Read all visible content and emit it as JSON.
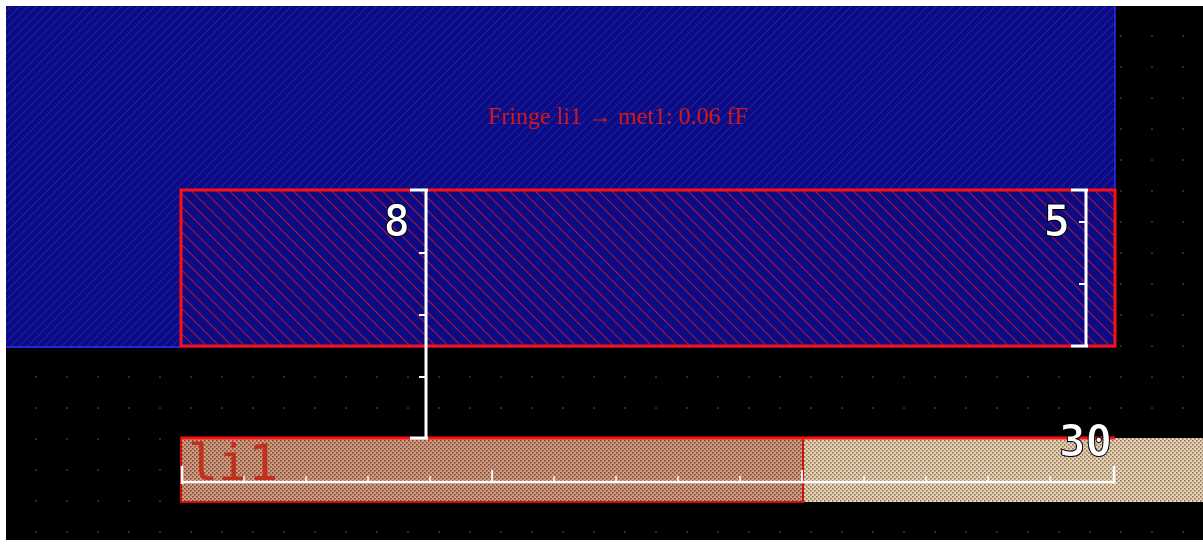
{
  "layout_view": {
    "background_color": "#000000",
    "grid": "dotted",
    "layers": [
      {
        "name": "met1",
        "fill": "#0a0a8a",
        "pattern": "fine-diagonal-hatch"
      },
      {
        "name": "li1",
        "fill": "#c9a98a",
        "pattern": "stipple",
        "label": "li1",
        "label_color": "#c0301c"
      }
    ],
    "highlight_color": "#ff1010",
    "annotation": {
      "text": "Fringe li1 → met1: 0.06 fF",
      "color": "#d41818"
    },
    "dimensions": {
      "vertical_left": "8",
      "vertical_right": "5",
      "horizontal": "30"
    }
  }
}
